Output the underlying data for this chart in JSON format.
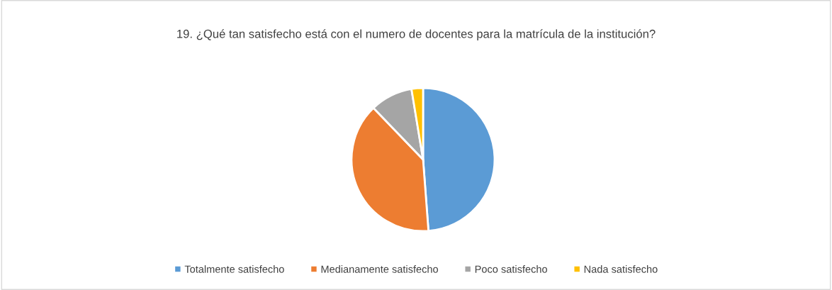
{
  "chart_data": {
    "type": "pie",
    "title": "19. ¿Qué tan satisfecho está con el numero de docentes para la matrícula de la institución?",
    "categories": [
      "Totalmente satisfecho",
      "Medianamente satisfecho",
      "Poco satisfecho",
      "Nada satisfecho"
    ],
    "values": [
      48.8,
      39.0,
      9.6,
      2.6
    ],
    "colors": [
      "#5b9bd5",
      "#ed7d31",
      "#a5a5a5",
      "#ffc000"
    ],
    "legend": "bottom"
  }
}
